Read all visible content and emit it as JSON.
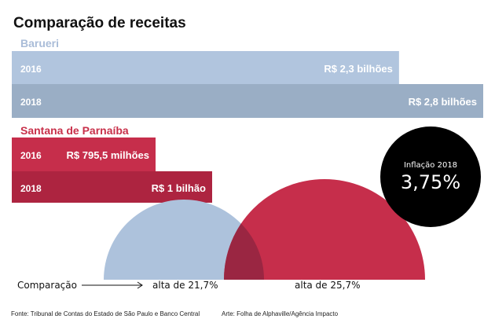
{
  "chart_data": {
    "type": "bar",
    "title": "Comparação de receitas",
    "groups": [
      {
        "name": "Barueri",
        "color": "#a9bcd8",
        "bars": [
          {
            "year": "2016",
            "label": "R$ 2,3 bilhões",
            "value_billion": 2.3,
            "color": "#b1c5de"
          },
          {
            "year": "2018",
            "label": "R$ 2,8 bilhões",
            "value_billion": 2.8,
            "color": "#9aaec5"
          }
        ]
      },
      {
        "name": "Santana de Parnaíba",
        "color": "#c8304a",
        "bars": [
          {
            "year": "2016",
            "label": "R$ 795,5 milhões",
            "value_billion": 0.7955,
            "color": "#c62e4b"
          },
          {
            "year": "2018",
            "label": "R$ 1 bilhão",
            "value_billion": 1.0,
            "color": "#ad2440"
          }
        ]
      }
    ],
    "growth": {
      "label": "Comparação",
      "items": [
        {
          "text": "alta de 21,7%",
          "value": 21.7,
          "color": "#adc2dc"
        },
        {
          "text": "alta de 25,7%",
          "value": 25.7,
          "color": "#c62e4b"
        }
      ],
      "overlap_color": "#9a2642"
    },
    "inflation": {
      "label": "Inflação 2018",
      "value_text": "3,75%",
      "value": 3.75,
      "color": "#000000"
    }
  },
  "footer": {
    "source": "Fonte: Tribunal de Contas do Estado de São Paulo e Banco Central",
    "credit": "Arte: Folha de Alphaville/Agência Impacto"
  }
}
